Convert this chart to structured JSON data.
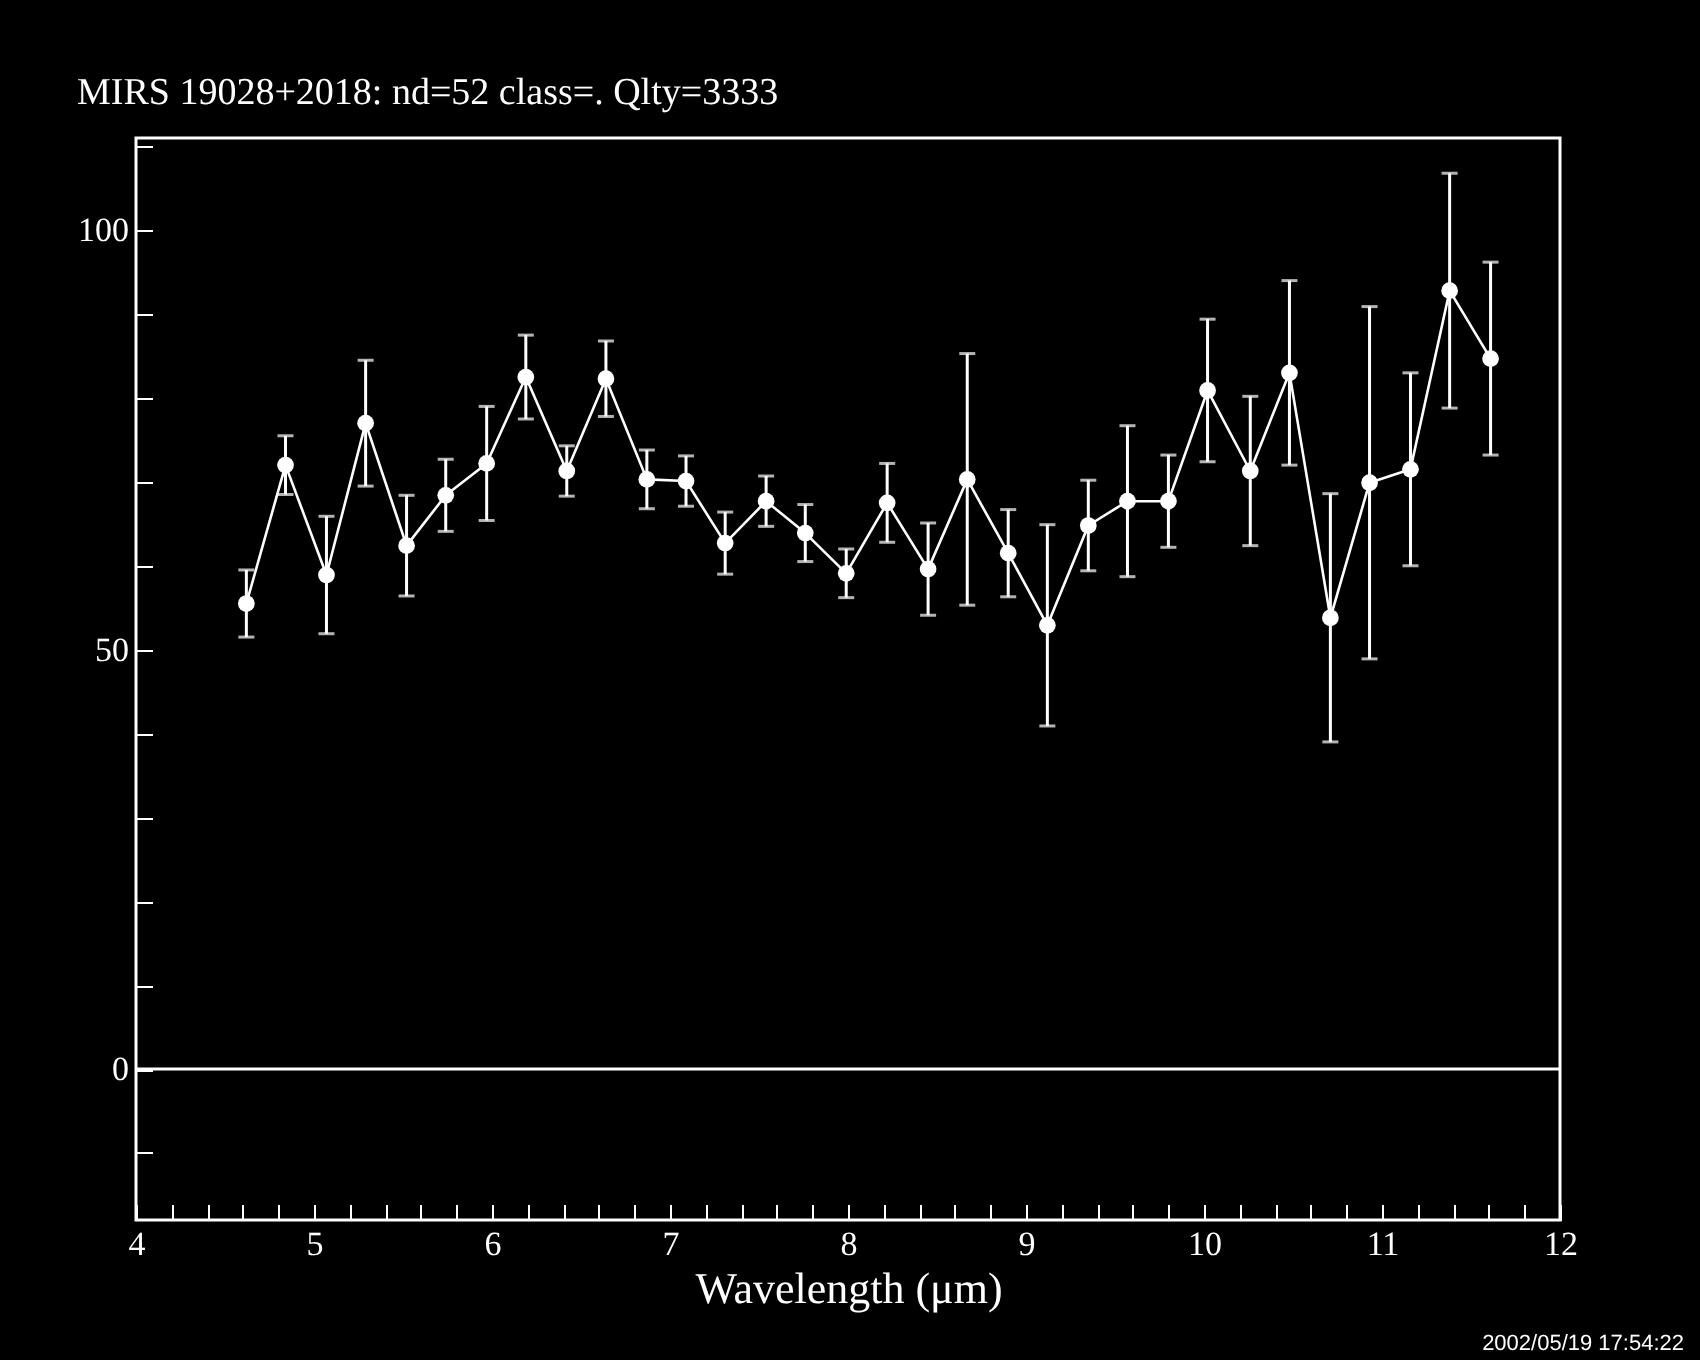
{
  "chart_data": {
    "type": "line",
    "title": "MIRS 19028+2018:    nd=52    class=.    Qlty=3333",
    "xlabel": "Wavelength (μm)",
    "x": [
      4.62,
      4.84,
      5.07,
      5.29,
      5.52,
      5.74,
      5.97,
      6.19,
      6.42,
      6.64,
      6.87,
      7.09,
      7.31,
      7.54,
      7.76,
      7.99,
      8.22,
      8.45,
      8.67,
      8.9,
      9.12,
      9.35,
      9.57,
      9.8,
      10.02,
      10.26,
      10.48,
      10.71,
      10.93,
      11.16,
      11.38,
      11.61
    ],
    "series": [
      {
        "color": "#ffffff",
        "values": [
          55.5,
          72,
          58.9,
          77,
          62.4,
          68.4,
          72.2,
          82.5,
          71.3,
          82.3,
          70.3,
          70.1,
          62.7,
          67.7,
          63.9,
          59.1,
          67.5,
          59.6,
          70.3,
          61.5,
          52.9,
          64.8,
          67.7,
          67.7,
          80.9,
          71.3,
          83,
          53.8,
          69.9,
          71.5,
          92.8,
          84.7
        ],
        "errors": [
          4,
          3.5,
          7,
          7.5,
          6,
          4.3,
          6.8,
          5,
          3,
          4.5,
          3.5,
          3,
          3.7,
          3,
          3.4,
          2.9,
          4.7,
          5.5,
          15,
          5.2,
          12,
          5.4,
          9,
          5.5,
          8.5,
          8.9,
          11,
          14.8,
          21,
          11.5,
          14,
          11.5
        ]
      }
    ],
    "marker": "circle",
    "line_style": "solid",
    "grid": false,
    "legend": false,
    "xlim": [
      4,
      12.0
    ],
    "ylim": [
      -18,
      111
    ],
    "xticks": [
      4,
      {
        "value": 4.2,
        "label": null
      },
      {
        "value": 4.4,
        "label": null
      },
      {
        "value": 4.6,
        "label": null
      },
      {
        "value": 4.8,
        "label": null
      },
      5,
      {
        "value": 5.2,
        "label": null
      },
      {
        "value": 5.4,
        "label": null
      },
      {
        "value": 5.6,
        "label": null
      },
      {
        "value": 5.8,
        "label": null
      },
      6,
      {
        "value": 6.2,
        "label": null
      },
      {
        "value": 6.4,
        "label": null
      },
      {
        "value": 6.6,
        "label": null
      },
      {
        "value": 6.8,
        "label": null
      },
      7,
      {
        "value": 7.2,
        "label": null
      },
      {
        "value": 7.4,
        "label": null
      },
      {
        "value": 7.6,
        "label": null
      },
      {
        "value": 7.8,
        "label": null
      },
      8,
      {
        "value": 8.2,
        "label": null
      },
      {
        "value": 8.4,
        "label": null
      },
      {
        "value": 8.6,
        "label": null
      },
      {
        "value": 8.8,
        "label": null
      },
      9,
      {
        "value": 9.2,
        "label": null
      },
      {
        "value": 9.4,
        "label": null
      },
      {
        "value": 9.6,
        "label": null
      },
      {
        "value": 9.8,
        "label": null
      },
      10,
      {
        "value": 10.2,
        "label": null
      },
      {
        "value": 10.4,
        "label": null
      },
      {
        "value": 10.6,
        "label": null
      },
      {
        "value": 10.8,
        "label": null
      },
      11,
      {
        "value": 11.2,
        "label": null
      },
      {
        "value": 11.4,
        "label": null
      },
      {
        "value": 11.6,
        "label": null
      },
      {
        "value": 11.8,
        "label": null
      },
      12
    ],
    "yticks": [
      {
        "value": -10,
        "label": null
      },
      0,
      {
        "value": 10,
        "label": null
      },
      {
        "value": 20,
        "label": null
      },
      {
        "value": 30,
        "label": null
      },
      {
        "value": 40,
        "label": null
      },
      50,
      {
        "value": 60,
        "label": null
      },
      {
        "value": 70,
        "label": null
      },
      {
        "value": 80,
        "label": null
      },
      {
        "value": 90,
        "label": null
      },
      100,
      {
        "value": 110,
        "label": null
      }
    ],
    "ref_lines": [
      {
        "axis": "y",
        "value": 0,
        "label": null,
        "color": "#ffffff"
      }
    ],
    "annotations": [
      "2002/05/19 17:54:22"
    ]
  }
}
